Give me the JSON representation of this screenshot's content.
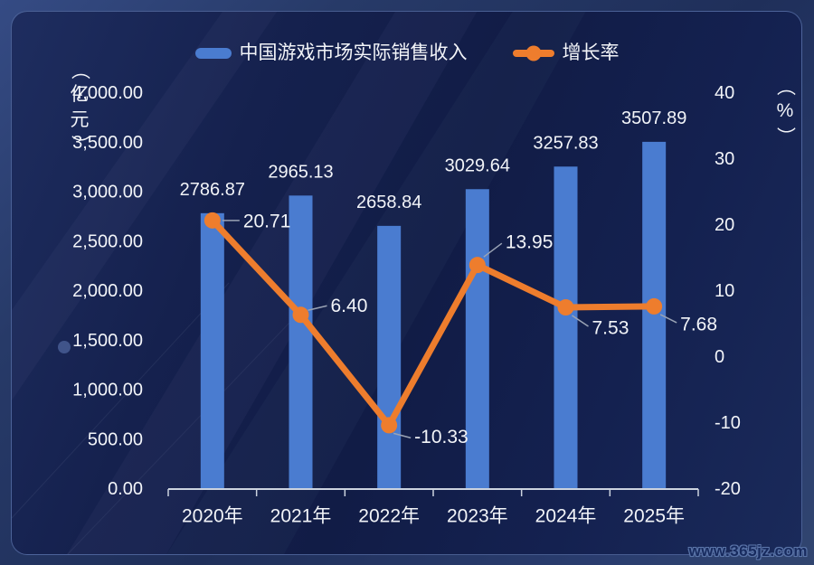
{
  "watermark": "www.365jz.com",
  "colors": {
    "bar": "#4a7cd0",
    "line": "#ee7d2d",
    "text": "#f2f4f8",
    "axis_line": "#ccd3df",
    "leader_line": "#9aa3b5",
    "panel_bg": "#131f4b",
    "outer_bg": "#2a3d6f"
  },
  "chart_data": {
    "type": "bar+line",
    "categories": [
      "2020年",
      "2021年",
      "2022年",
      "2023年",
      "2024年",
      "2025年"
    ],
    "series": [
      {
        "name": "中国游戏市场实际销售收入",
        "type": "bar",
        "yaxis": "left",
        "unit": "亿元",
        "values": [
          2786.87,
          2965.13,
          2658.84,
          3029.64,
          3257.83,
          3507.89
        ]
      },
      {
        "name": "增长率",
        "type": "line",
        "yaxis": "right",
        "unit": "%",
        "values": [
          20.71,
          6.4,
          -10.33,
          13.95,
          7.53,
          7.68
        ]
      }
    ],
    "left_axis": {
      "label": "（亿元）",
      "min": 0,
      "max": 4000,
      "tick_step": 500
    },
    "right_axis": {
      "label": "（%）",
      "min": -20,
      "max": 40,
      "tick_step": 10
    },
    "legend_position": "top",
    "grid": false,
    "data_labels": true
  }
}
